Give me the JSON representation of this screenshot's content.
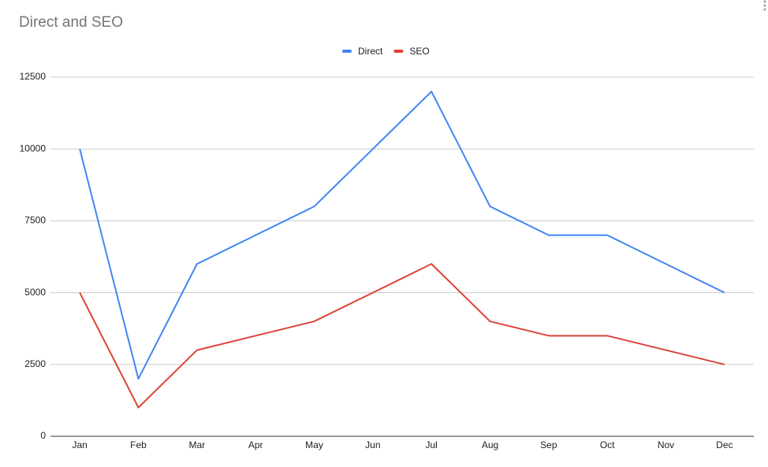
{
  "chart_data": {
    "type": "line",
    "title": "Direct and SEO",
    "categories": [
      "Jan",
      "Feb",
      "Mar",
      "Apr",
      "May",
      "Jun",
      "Jul",
      "Aug",
      "Sep",
      "Oct",
      "Nov",
      "Dec"
    ],
    "series": [
      {
        "name": "Direct",
        "color": "#4285f4",
        "values": [
          10000,
          2000,
          6000,
          7000,
          8000,
          10000,
          12000,
          8000,
          7000,
          7000,
          6000,
          5000
        ]
      },
      {
        "name": "SEO",
        "color": "#db4437",
        "values": [
          5000,
          1000,
          3000,
          3500,
          4000,
          5000,
          6000,
          4000,
          3500,
          3500,
          3000,
          2500
        ]
      }
    ],
    "ylim": [
      0,
      12500
    ],
    "yticks": [
      0,
      2500,
      5000,
      7500,
      10000,
      12500
    ],
    "grid": true,
    "legend": "top"
  }
}
